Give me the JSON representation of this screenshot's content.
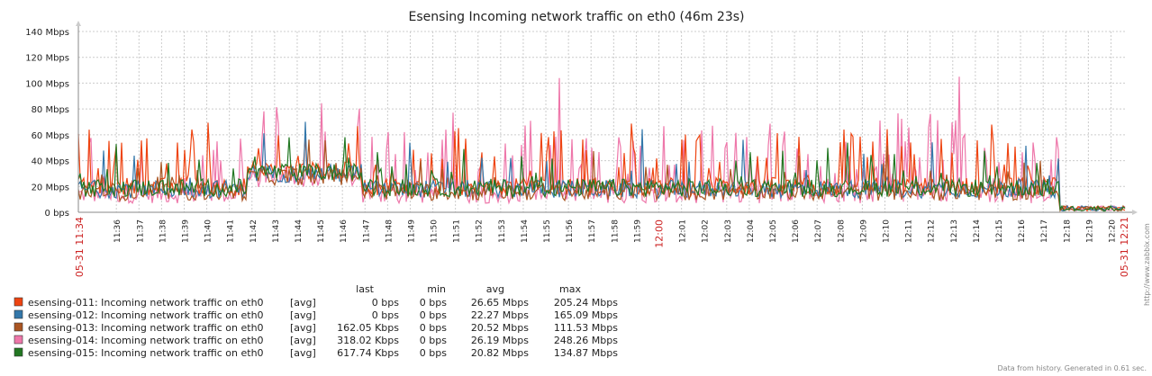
{
  "chart_data": {
    "type": "line",
    "title": "Esensing Incoming network traffic on eth0 (46m 23s)",
    "y_unit": "Mbps",
    "ylim": [
      0,
      140
    ],
    "y_ticks": [
      "0 bps",
      "20 Mbps",
      "40 Mbps",
      "60 Mbps",
      "80 Mbps",
      "100 Mbps",
      "120 Mbps",
      "140 Mbps"
    ],
    "y_tick_values": [
      0,
      20,
      40,
      60,
      80,
      100,
      120,
      140
    ],
    "x_start_label": "05-31 11:34",
    "x_end_label": "05-31 12:21",
    "x_ticks": [
      "11:36",
      "11:37",
      "11:38",
      "11:39",
      "11:40",
      "11:41",
      "11:42",
      "11:43",
      "11:44",
      "11:45",
      "11:46",
      "11:47",
      "11:48",
      "11:49",
      "11:50",
      "11:51",
      "11:52",
      "11:53",
      "11:54",
      "11:55",
      "11:56",
      "11:57",
      "11:58",
      "11:59",
      "12:00",
      "12:01",
      "12:02",
      "12:03",
      "12:04",
      "12:05",
      "12:06",
      "12:07",
      "12:08",
      "12:09",
      "12:10",
      "12:11",
      "12:12",
      "12:13",
      "12:14",
      "12:15",
      "12:16",
      "12:17",
      "12:18",
      "12:19",
      "12:20"
    ],
    "x_tick_red": "12:00",
    "series": [
      {
        "name": "esensing-011: Incoming network traffic on eth0",
        "agg": "[avg]",
        "color": "#ee4411",
        "last": "0 bps",
        "min": "0 bps",
        "avg": "26.65 Mbps",
        "max": "205.24 Mbps"
      },
      {
        "name": "esensing-012: Incoming network traffic on eth0",
        "agg": "[avg]",
        "color": "#3377aa",
        "last": "0 bps",
        "min": "0 bps",
        "avg": "22.27 Mbps",
        "max": "165.09 Mbps"
      },
      {
        "name": "esensing-013: Incoming network traffic on eth0",
        "agg": "[avg]",
        "color": "#aa5522",
        "last": "162.05 Kbps",
        "min": "0 bps",
        "avg": "20.52 Mbps",
        "max": "111.53 Mbps"
      },
      {
        "name": "esensing-014: Incoming network traffic on eth0",
        "agg": "[avg]",
        "color": "#ee77aa",
        "last": "318.02 Kbps",
        "min": "0 bps",
        "avg": "26.19 Mbps",
        "max": "248.26 Mbps"
      },
      {
        "name": "esensing-015: Incoming network traffic on eth0",
        "agg": "[avg]",
        "color": "#227722",
        "last": "617.74 Kbps",
        "min": "0 bps",
        "avg": "20.82 Mbps",
        "max": "134.87 Mbps"
      }
    ],
    "legend_headers": {
      "last": "last",
      "min": "min",
      "avg": "avg",
      "max": "max"
    },
    "grid": true
  },
  "footer": "Data from history. Generated in 0.61 sec.",
  "side_url": "http://www.zabbix.com"
}
